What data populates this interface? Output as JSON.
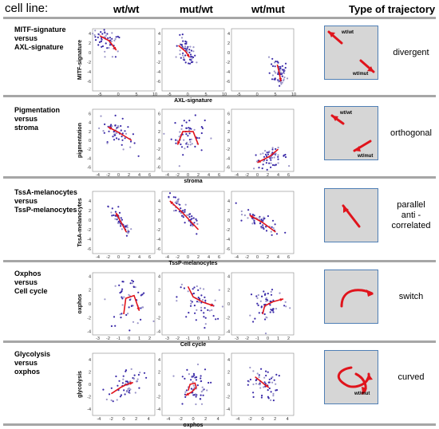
{
  "headers": {
    "cell_line": "cell line:",
    "col1": "wt/wt",
    "col2": "mut/wt",
    "col3": "wt/mut",
    "trajectory": "Type of trajectory"
  },
  "rows": [
    {
      "label": [
        "MITF-signature",
        "versus",
        "AXL-signature"
      ],
      "type_label": [
        "divergent"
      ],
      "traj_labels": [
        "wt/wt",
        "wt/mut"
      ],
      "icon": "divergent-arrows-icon"
    },
    {
      "label": [
        "Pigmentation",
        "versus",
        "stroma"
      ],
      "type_label": [
        "orthogonal"
      ],
      "traj_labels": [
        "wt/wt",
        "wt/mut"
      ],
      "icon": "orthogonal-arrows-icon"
    },
    {
      "label": [
        "TssA-melanocytes",
        "versus",
        "TssP-melanocytes"
      ],
      "type_label": [
        "parallel",
        "anti -",
        "correlated"
      ],
      "traj_labels": [],
      "icon": "single-arrow-icon"
    },
    {
      "label": [
        "Oxphos",
        "versus",
        "Cell cycle"
      ],
      "type_label": [
        "switch"
      ],
      "traj_labels": [],
      "icon": "switch-arrow-icon"
    },
    {
      "label": [
        "Glycolysis",
        "versus",
        "oxphos"
      ],
      "type_label": [
        "curved"
      ],
      "traj_labels": [
        "wt/mut"
      ],
      "icon": "curved-arrows-icon"
    }
  ],
  "colors": {
    "points_dark": "#3a2aa8",
    "points_light": "#9a95c8",
    "arrow": "#e0141c",
    "box_fill": "#d6d6d6",
    "box_border": "#4f7fb5"
  },
  "chart_data": [
    {
      "type": "scatter",
      "row": 0,
      "xlabel": "AXL-signature",
      "ylabel": "MITF-signature",
      "xlim": [
        -7,
        10
      ],
      "ylim": [
        -8,
        5
      ],
      "xticks": [
        -5,
        0,
        5,
        10
      ],
      "yticks": [
        4,
        2,
        0,
        -2,
        -4,
        -6
      ],
      "panels": [
        {
          "cx": -3,
          "cy": 2.5,
          "sx": 2.0,
          "sy": 1.6,
          "corr": -0.5,
          "arrow": [
            [
              -5,
              3.5
            ],
            [
              -2.5,
              2.5
            ],
            [
              -0.5,
              0.5
            ]
          ]
        },
        {
          "cx": -0.5,
          "cy": 0,
          "sx": 1.4,
          "sy": 1.5,
          "corr": -0.4,
          "arrow": [
            [
              -2.5,
              1.5
            ],
            [
              -0.5,
              0.2
            ],
            [
              0.5,
              -1
            ]
          ]
        },
        {
          "cx": 6,
          "cy": -4,
          "sx": 1.2,
          "sy": 1.8,
          "corr": -0.3,
          "arrow": [
            [
              5.5,
              -2.5
            ],
            [
              6,
              -4
            ],
            [
              6.5,
              -6
            ]
          ]
        }
      ]
    },
    {
      "type": "scatter",
      "row": 1,
      "xlabel": "stroma",
      "ylabel": "pigmentation",
      "xlim": [
        -5,
        7
      ],
      "ylim": [
        -7,
        7
      ],
      "xticks": [
        -4,
        -2,
        0,
        2,
        4,
        6
      ],
      "yticks": [
        6,
        4,
        2,
        0,
        -2,
        -4,
        -6
      ],
      "panels": [
        {
          "cx": -0.5,
          "cy": 2,
          "sx": 1.6,
          "sy": 1.8,
          "corr": -0.5,
          "arrow": [
            [
              2.5,
              0
            ],
            [
              0,
              1.8
            ],
            [
              -2,
              3
            ]
          ]
        },
        {
          "cx": 0,
          "cy": 1,
          "sx": 1.6,
          "sy": 2.0,
          "corr": 0.0,
          "arrow": [
            [
              2,
              -1
            ],
            [
              1,
              2
            ],
            [
              -1,
              2
            ],
            [
              -2,
              -1
            ]
          ]
        },
        {
          "cx": 2.5,
          "cy": -4,
          "sx": 1.6,
          "sy": 1.0,
          "corr": 0.3,
          "arrow": [
            [
              4,
              -2
            ],
            [
              2.5,
              -3.5
            ],
            [
              0,
              -5
            ]
          ]
        }
      ]
    },
    {
      "type": "scatter",
      "row": 2,
      "xlabel": "TssP-melanocytes",
      "ylabel": "TssA-melanocytes",
      "xlim": [
        -5,
        7
      ],
      "ylim": [
        -7,
        6
      ],
      "xticks": [
        -4,
        -2,
        0,
        2,
        4,
        6
      ],
      "yticks": [
        4,
        2,
        0,
        -2,
        -4,
        -6
      ],
      "panels": [
        {
          "cx": 0.5,
          "cy": -0.5,
          "sx": 1.2,
          "sy": 1.8,
          "corr": -0.9,
          "arrow": [
            [
              1.5,
              -2.5
            ],
            [
              0.5,
              -0.5
            ],
            [
              -0.5,
              1.5
            ]
          ]
        },
        {
          "cx": -1,
          "cy": 1.5,
          "sx": 1.8,
          "sy": 2.2,
          "corr": -0.9,
          "arrow": [
            [
              2,
              -2
            ],
            [
              -1,
              1.5
            ],
            [
              -3.5,
              4
            ]
          ]
        },
        {
          "cx": 1,
          "cy": -0.5,
          "sx": 1.8,
          "sy": 1.4,
          "corr": -0.8,
          "arrow": [
            [
              3.5,
              -2.5
            ],
            [
              1,
              -0.5
            ],
            [
              -1.5,
              1
            ]
          ]
        }
      ]
    },
    {
      "type": "scatter",
      "row": 3,
      "xlabel": "Cell cycle",
      "ylabel": "oxphos",
      "xlim": [
        -3.5,
        2.5
      ],
      "ylim": [
        -4.5,
        4.5
      ],
      "xticks": [
        -3,
        -2,
        -1,
        0,
        1,
        2
      ],
      "yticks": [
        4,
        2,
        0,
        -2,
        -4
      ],
      "panels": [
        {
          "cx": 0,
          "cy": 0.5,
          "sx": 1.0,
          "sy": 1.8,
          "corr": 0.0,
          "arrow": [
            [
              -0.5,
              -1.5
            ],
            [
              -0.3,
              0.8
            ],
            [
              0.5,
              1.2
            ],
            [
              1,
              -1
            ]
          ]
        },
        {
          "cx": 0,
          "cy": 0,
          "sx": 1.0,
          "sy": 1.5,
          "corr": -0.3,
          "arrow": [
            [
              -1,
              2.5
            ],
            [
              -0.5,
              1
            ],
            [
              0.5,
              0.2
            ],
            [
              1.5,
              -0.3
            ]
          ]
        },
        {
          "cx": 0,
          "cy": 0,
          "sx": 1.0,
          "sy": 1.5,
          "corr": 0.1,
          "arrow": [
            [
              -0.5,
              -1.5
            ],
            [
              -0.3,
              -0.3
            ],
            [
              0.5,
              0.3
            ],
            [
              1.5,
              0.7
            ]
          ]
        }
      ]
    },
    {
      "type": "scatter",
      "row": 4,
      "xlabel": "oxphos",
      "ylabel": "glycolysis",
      "xlim": [
        -5,
        5
      ],
      "ylim": [
        -5,
        5
      ],
      "xticks": [
        -4,
        -2,
        0,
        2,
        4
      ],
      "yticks": [
        4,
        2,
        0,
        -2,
        -4
      ],
      "panels": [
        {
          "cx": 0.5,
          "cy": 0,
          "sx": 1.3,
          "sy": 1.3,
          "corr": 0.3,
          "arrow": [
            [
              -2,
              -1.5
            ],
            [
              -0.5,
              -0.5
            ],
            [
              0.5,
              0
            ],
            [
              1.5,
              0.3
            ]
          ]
        },
        {
          "cx": 0,
          "cy": -0.3,
          "sx": 1.2,
          "sy": 1.5,
          "corr": 0.0,
          "arrow": [
            [
              -0.8,
              -1
            ],
            [
              -0.5,
              0
            ],
            [
              0.3,
              0.2
            ],
            [
              0.5,
              -0.5
            ],
            [
              -0.2,
              -1.2
            ],
            [
              -1.2,
              -1.8
            ]
          ]
        },
        {
          "cx": 0,
          "cy": 0,
          "sx": 1.2,
          "sy": 1.4,
          "corr": 0.0,
          "arrow": [
            [
              -1.2,
              1.2
            ],
            [
              -0.3,
              0.5
            ],
            [
              0.3,
              0
            ],
            [
              1,
              -0.5
            ]
          ]
        }
      ]
    }
  ]
}
